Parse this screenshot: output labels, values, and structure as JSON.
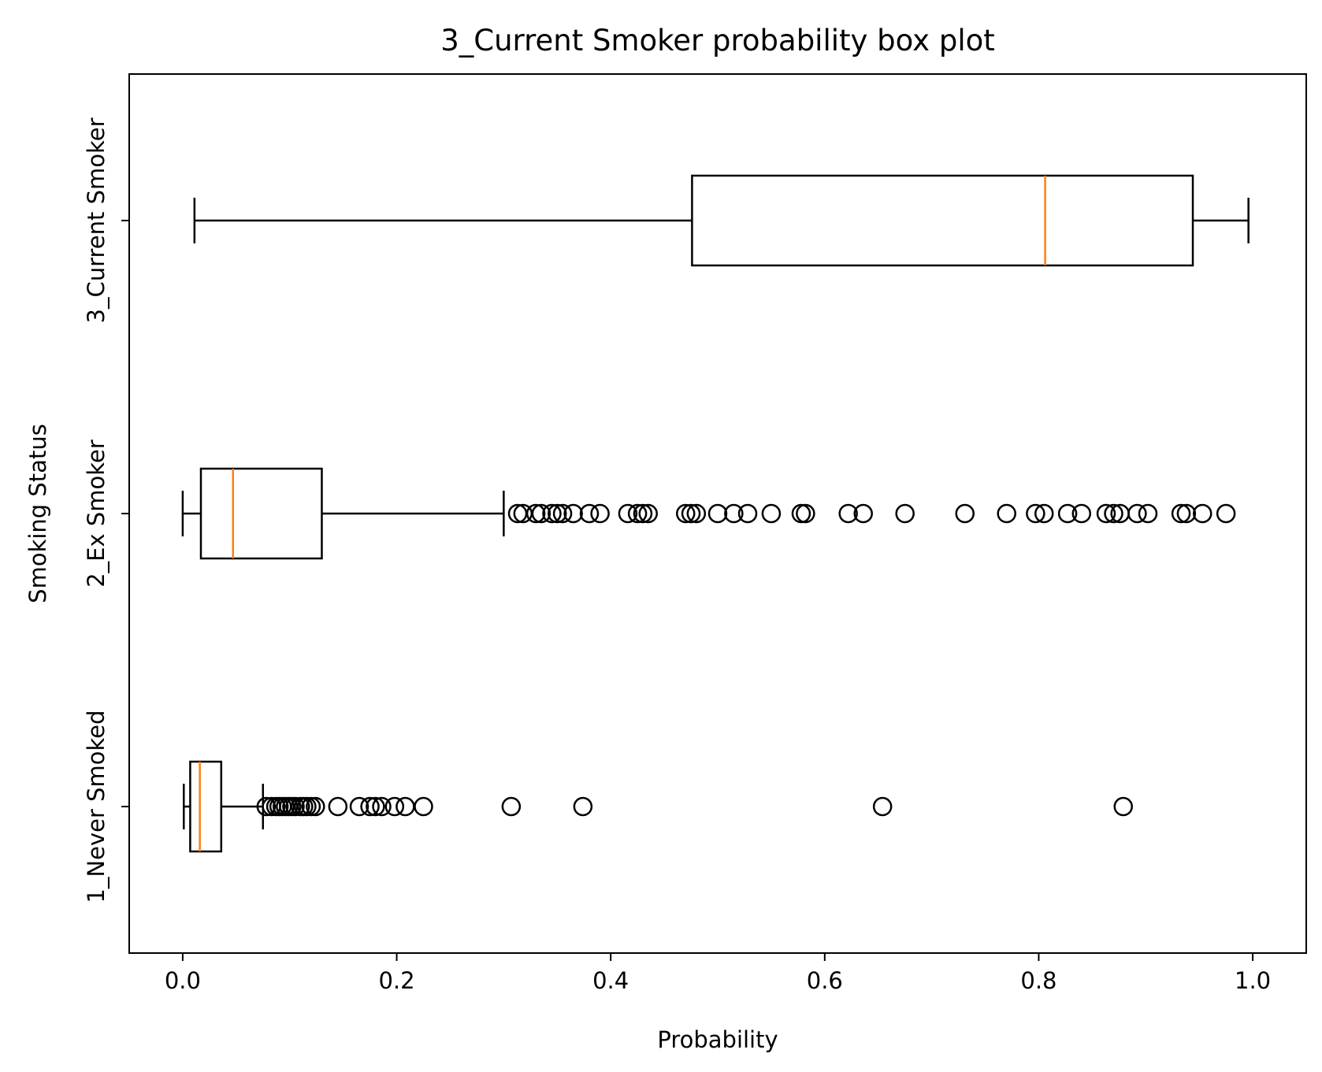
{
  "chart_data": {
    "type": "boxplot",
    "orientation": "horizontal",
    "title": "3_Current Smoker probability box plot",
    "xlabel": "Probability",
    "ylabel": "Smoking Status",
    "xlim": [
      -0.05,
      1.05
    ],
    "xticks": [
      0.0,
      0.2,
      0.4,
      0.6,
      0.8,
      1.0
    ],
    "xtick_labels": [
      "0.0",
      "0.2",
      "0.4",
      "0.6",
      "0.8",
      "1.0"
    ],
    "categories": [
      "1_Never Smoked",
      "2_Ex Smoker",
      "3_Current Smoker"
    ],
    "grid": false,
    "median_color": "#ff7f0e",
    "box_color": "#000000",
    "boxes": [
      {
        "category": "1_Never Smoked",
        "whisker_low": 0.001,
        "q1": 0.007,
        "median": 0.016,
        "q3": 0.036,
        "whisker_high": 0.075,
        "outliers": [
          0.078,
          0.083,
          0.087,
          0.09,
          0.093,
          0.096,
          0.099,
          0.102,
          0.105,
          0.11,
          0.113,
          0.116,
          0.12,
          0.124,
          0.145,
          0.165,
          0.175,
          0.18,
          0.186,
          0.198,
          0.208,
          0.225,
          0.307,
          0.374,
          0.654,
          0.879
        ]
      },
      {
        "category": "2_Ex Smoker",
        "whisker_low": 0.0,
        "q1": 0.017,
        "median": 0.047,
        "q3": 0.13,
        "whisker_high": 0.3,
        "outliers": [
          0.313,
          0.318,
          0.33,
          0.335,
          0.345,
          0.35,
          0.355,
          0.365,
          0.38,
          0.39,
          0.416,
          0.425,
          0.43,
          0.435,
          0.47,
          0.475,
          0.48,
          0.5,
          0.515,
          0.528,
          0.55,
          0.578,
          0.582,
          0.622,
          0.636,
          0.675,
          0.731,
          0.77,
          0.797,
          0.805,
          0.827,
          0.84,
          0.863,
          0.87,
          0.876,
          0.892,
          0.902,
          0.933,
          0.938,
          0.953,
          0.975
        ]
      },
      {
        "category": "3_Current Smoker",
        "whisker_low": 0.011,
        "q1": 0.476,
        "median": 0.806,
        "q3": 0.944,
        "whisker_high": 0.996,
        "outliers": []
      }
    ]
  }
}
